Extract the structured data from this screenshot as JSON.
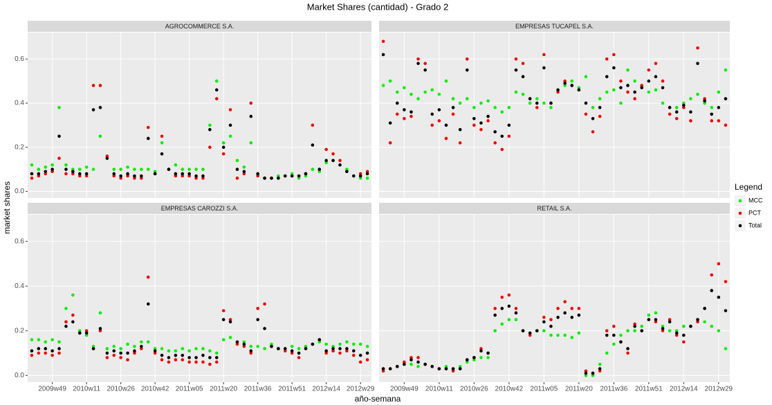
{
  "chart_data": {
    "type": "scatter",
    "title": "Market Shares (cantidad) - Grado 2",
    "x_label": "año-semana",
    "y_label": "market shares",
    "legend_title": "Legend",
    "legend_position": "right",
    "grid": true,
    "categories": [
      null,
      null,
      null,
      "2009w49",
      null,
      null,
      null,
      null,
      "2010w11",
      null,
      null,
      null,
      null,
      "2010w26",
      null,
      null,
      null,
      null,
      "2010w42",
      null,
      null,
      null,
      null,
      "2011w05",
      null,
      null,
      null,
      null,
      "2011w20",
      null,
      null,
      null,
      null,
      "2011w36",
      null,
      null,
      null,
      null,
      "2011w51",
      null,
      null,
      null,
      null,
      "2012w14",
      null,
      null,
      null,
      null,
      "2012w29",
      null
    ],
    "ylim": [
      -0.03,
      0.72
    ],
    "yticks": [
      {
        "value": 0,
        "label": "0.0"
      },
      0.2,
      0.4,
      0.6
    ],
    "facets": [
      {
        "title": "AGROCOMMERCE S.A.",
        "series": [
          {
            "name": "MCC",
            "color": "#00ee00",
            "values": [
              0.12,
              0.1,
              0.11,
              0.12,
              0.38,
              0.12,
              0.1,
              0.1,
              0.11,
              0.1,
              0.25,
              0.15,
              0.1,
              0.1,
              0.11,
              0.1,
              0.1,
              0.1,
              0.09,
              0.22,
              0.1,
              0.12,
              0.1,
              0.1,
              0.1,
              0.1,
              0.3,
              0.5,
              0.22,
              0.25,
              0.14,
              0.11,
              0.22,
              0.08,
              0.06,
              0.06,
              0.07,
              0.07,
              0.08,
              0.06,
              0.07,
              0.1,
              0.09,
              0.13,
              0.14,
              0.12,
              0.1,
              0.07,
              0.06,
              0.06
            ]
          },
          {
            "name": "PCT",
            "color": "#ee0000",
            "values": [
              0.06,
              0.07,
              0.08,
              0.09,
              0.15,
              0.08,
              0.08,
              0.07,
              0.07,
              0.48,
              0.48,
              0.16,
              0.07,
              0.06,
              0.07,
              0.06,
              0.06,
              0.29,
              0.08,
              0.25,
              0.1,
              0.07,
              0.07,
              0.07,
              0.06,
              0.06,
              0.2,
              0.42,
              0.17,
              0.37,
              0.06,
              0.08,
              0.4,
              0.07,
              0.06,
              0.06,
              0.06,
              0.07,
              0.07,
              0.07,
              0.08,
              0.3,
              0.1,
              0.19,
              0.17,
              0.14,
              0.09,
              0.07,
              0.08,
              0.09
            ]
          },
          {
            "name": "Total",
            "color": "#000000",
            "values": [
              0.08,
              0.08,
              0.09,
              0.1,
              0.25,
              0.1,
              0.09,
              0.08,
              0.08,
              0.37,
              0.38,
              0.15,
              0.08,
              0.07,
              0.08,
              0.07,
              0.07,
              0.24,
              0.08,
              0.17,
              0.1,
              0.08,
              0.08,
              0.08,
              0.07,
              0.07,
              0.28,
              0.46,
              0.2,
              0.3,
              0.1,
              0.09,
              0.34,
              0.08,
              0.06,
              0.06,
              0.06,
              0.07,
              0.07,
              0.07,
              0.08,
              0.21,
              0.1,
              0.14,
              0.14,
              0.12,
              0.09,
              0.07,
              0.07,
              0.08
            ]
          }
        ]
      },
      {
        "title": "EMPRESAS TUCAPEL S.A.",
        "series": [
          {
            "name": "MCC",
            "color": "#00ee00",
            "values": [
              0.48,
              0.5,
              0.45,
              0.47,
              0.44,
              0.42,
              0.45,
              0.46,
              0.44,
              0.5,
              0.42,
              0.4,
              0.42,
              0.38,
              0.4,
              0.41,
              0.38,
              0.36,
              0.38,
              0.45,
              0.44,
              0.4,
              0.42,
              0.4,
              0.38,
              0.46,
              0.48,
              0.5,
              0.47,
              0.52,
              0.38,
              0.42,
              0.45,
              0.46,
              0.4,
              0.55,
              0.5,
              0.48,
              0.45,
              0.46,
              0.4,
              0.38,
              0.38,
              0.4,
              0.42,
              0.44,
              0.4,
              0.38,
              0.45,
              0.55
            ]
          },
          {
            "name": "PCT",
            "color": "#ee0000",
            "values": [
              0.68,
              0.22,
              0.35,
              0.33,
              0.34,
              0.6,
              0.58,
              0.3,
              0.32,
              0.24,
              0.35,
              0.22,
              0.6,
              0.3,
              0.28,
              0.32,
              0.22,
              0.19,
              0.25,
              0.6,
              0.58,
              0.42,
              0.38,
              0.62,
              0.4,
              0.45,
              0.5,
              0.48,
              0.46,
              0.35,
              0.27,
              0.34,
              0.6,
              0.62,
              0.5,
              0.45,
              0.42,
              0.48,
              0.55,
              0.58,
              0.5,
              0.35,
              0.33,
              0.38,
              0.32,
              0.65,
              0.42,
              0.32,
              0.32,
              0.3
            ]
          },
          {
            "name": "Total",
            "color": "#000000",
            "values": [
              0.62,
              0.31,
              0.4,
              0.37,
              0.36,
              0.58,
              0.55,
              0.35,
              0.37,
              0.3,
              0.38,
              0.28,
              0.55,
              0.33,
              0.31,
              0.34,
              0.27,
              0.25,
              0.3,
              0.55,
              0.52,
              0.42,
              0.4,
              0.56,
              0.4,
              0.46,
              0.49,
              0.48,
              0.46,
              0.4,
              0.33,
              0.38,
              0.52,
              0.56,
              0.47,
              0.48,
              0.45,
              0.47,
              0.5,
              0.52,
              0.47,
              0.38,
              0.36,
              0.39,
              0.36,
              0.58,
              0.41,
              0.35,
              0.38,
              0.42
            ]
          }
        ]
      },
      {
        "title": "EMPRESAS CAROZZI S.A.",
        "series": [
          {
            "name": "MCC",
            "color": "#00ee00",
            "values": [
              0.16,
              0.16,
              0.15,
              0.16,
              0.15,
              0.3,
              0.36,
              0.2,
              0.18,
              0.13,
              0.28,
              0.12,
              0.13,
              0.12,
              0.14,
              0.13,
              0.15,
              0.15,
              0.12,
              0.12,
              0.11,
              0.11,
              0.12,
              0.11,
              0.12,
              0.12,
              0.11,
              0.1,
              0.16,
              0.17,
              0.14,
              0.15,
              0.13,
              0.13,
              0.12,
              0.14,
              0.12,
              0.12,
              0.13,
              0.12,
              0.13,
              0.14,
              0.15,
              0.14,
              0.13,
              0.14,
              0.15,
              0.14,
              0.14,
              0.13
            ]
          },
          {
            "name": "PCT",
            "color": "#ee0000",
            "values": [
              0.09,
              0.1,
              0.1,
              0.09,
              0.1,
              0.24,
              0.27,
              0.19,
              0.2,
              0.12,
              0.2,
              0.08,
              0.09,
              0.08,
              0.07,
              0.1,
              0.12,
              0.44,
              0.1,
              0.07,
              0.06,
              0.07,
              0.07,
              0.06,
              0.06,
              0.06,
              0.05,
              0.06,
              0.29,
              0.25,
              0.14,
              0.13,
              0.1,
              0.3,
              0.32,
              0.13,
              0.12,
              0.11,
              0.1,
              0.08,
              0.12,
              0.14,
              0.16,
              0.1,
              0.11,
              0.1,
              0.11,
              0.09,
              0.06,
              0.07
            ]
          },
          {
            "name": "Total",
            "color": "#000000",
            "values": [
              0.11,
              0.12,
              0.12,
              0.11,
              0.12,
              0.22,
              0.24,
              0.19,
              0.19,
              0.12,
              0.21,
              0.1,
              0.11,
              0.1,
              0.1,
              0.11,
              0.13,
              0.32,
              0.11,
              0.09,
              0.08,
              0.09,
              0.09,
              0.08,
              0.08,
              0.09,
              0.08,
              0.08,
              0.25,
              0.24,
              0.15,
              0.14,
              0.11,
              0.25,
              0.21,
              0.13,
              0.12,
              0.12,
              0.11,
              0.1,
              0.12,
              0.14,
              0.16,
              0.11,
              0.12,
              0.12,
              0.12,
              0.11,
              0.09,
              0.1
            ]
          }
        ]
      },
      {
        "title": "RETAIL S.A.",
        "series": [
          {
            "name": "MCC",
            "color": "#00ee00",
            "values": [
              0.03,
              0.03,
              0.04,
              0.05,
              0.05,
              0.04,
              0.05,
              0.04,
              0.03,
              0.04,
              0.03,
              0.04,
              0.06,
              0.07,
              0.08,
              0.08,
              0.2,
              0.23,
              0.25,
              0.25,
              0.2,
              0.19,
              0.2,
              0.2,
              0.18,
              0.18,
              0.18,
              0.17,
              0.19,
              0,
              0,
              0.05,
              0.1,
              0.14,
              0.18,
              0.2,
              0.2,
              0.22,
              0.27,
              0.28,
              0.22,
              0.2,
              0.2,
              0.22,
              0.22,
              0.25,
              0.24,
              0.22,
              0.2,
              0.12
            ]
          },
          {
            "name": "PCT",
            "color": "#ee0000",
            "values": [
              0.02,
              0.03,
              0.04,
              0.06,
              0.08,
              0.08,
              0.05,
              0.04,
              0.03,
              0.03,
              0.02,
              0.03,
              0.07,
              0.08,
              0.12,
              0.1,
              0.3,
              0.35,
              0.36,
              0.3,
              0.2,
              0.18,
              0.2,
              0.26,
              0.25,
              0.3,
              0.33,
              0.3,
              0.3,
              0.02,
              0.01,
              0.02,
              0.2,
              0.22,
              0.15,
              0.1,
              0.23,
              0.2,
              0.25,
              0.24,
              0.2,
              0.25,
              0.18,
              0.15,
              0.22,
              0.24,
              0.3,
              0.45,
              0.5,
              0.42
            ]
          },
          {
            "name": "Total",
            "color": "#000000",
            "values": [
              0.03,
              0.03,
              0.04,
              0.05,
              0.07,
              0.06,
              0.05,
              0.04,
              0.03,
              0.03,
              0.03,
              0.03,
              0.07,
              0.08,
              0.11,
              0.1,
              0.27,
              0.3,
              0.31,
              0.28,
              0.2,
              0.19,
              0.2,
              0.24,
              0.22,
              0.26,
              0.28,
              0.26,
              0.27,
              0.01,
              0.01,
              0.03,
              0.18,
              0.18,
              0.15,
              0.12,
              0.22,
              0.2,
              0.25,
              0.25,
              0.21,
              0.24,
              0.19,
              0.18,
              0.22,
              0.25,
              0.3,
              0.38,
              0.35,
              0.29
            ]
          }
        ]
      }
    ]
  }
}
